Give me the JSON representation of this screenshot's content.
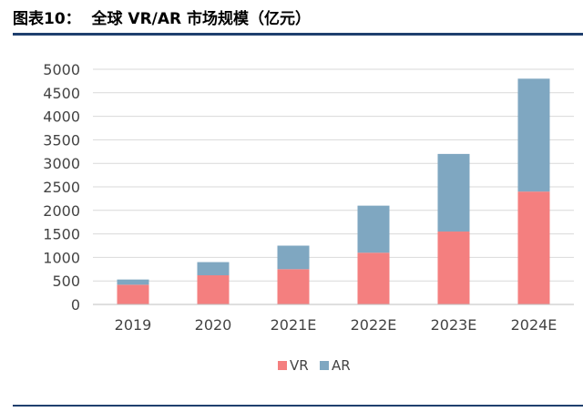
{
  "header": {
    "title": "图表10：  全球 VR/AR 市场规模（亿元）"
  },
  "chart_data": {
    "type": "bar",
    "stacked": true,
    "title": "",
    "xlabel": "",
    "ylabel": "",
    "categories": [
      "2019",
      "2020",
      "2021E",
      "2022E",
      "2023E",
      "2024E"
    ],
    "series": [
      {
        "name": "VR",
        "color": "#f47f7f",
        "values": [
          420,
          620,
          750,
          1100,
          1550,
          2400
        ]
      },
      {
        "name": "AR",
        "color": "#7fa7c1",
        "values": [
          110,
          280,
          500,
          1000,
          1650,
          2400
        ]
      }
    ],
    "ylim": [
      0,
      5000
    ],
    "yticks": [
      "0",
      "500",
      "1000",
      "1500",
      "2000",
      "2500",
      "3000",
      "3500",
      "4000",
      "4500",
      "5000"
    ],
    "grid": true,
    "legend": "bottom"
  }
}
